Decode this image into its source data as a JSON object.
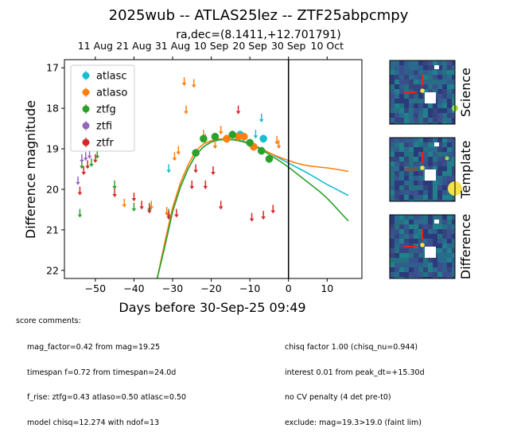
{
  "title": "2025wub -- ATLAS25lez -- ZTF25abpcmpy",
  "radec": "ra,dec=(8.1411,+12.701791)",
  "chart_data": {
    "type": "scatter",
    "xlabel": "Days before 30-Sep-25 09:49",
    "ylabel": "Difference magnitude",
    "xlim": [
      -58,
      19
    ],
    "ylim": [
      22.2,
      16.8
    ],
    "yticks": [
      17,
      18,
      19,
      20,
      21,
      22
    ],
    "xticks": [
      -50,
      -40,
      -30,
      -20,
      -10,
      0,
      10
    ],
    "top_axis_ticks": [
      {
        "label": "11 Aug",
        "x": -50
      },
      {
        "label": "21 Aug",
        "x": -40
      },
      {
        "label": "31 Aug",
        "x": -30
      },
      {
        "label": "10 Sep",
        "x": -20
      },
      {
        "label": "20 Sep",
        "x": -10
      },
      {
        "label": "30 Sep",
        "x": 0
      },
      {
        "label": "10 Oct",
        "x": 10
      }
    ],
    "vline_x": 0,
    "legend": [
      {
        "name": "atlasc",
        "color": "#17becf"
      },
      {
        "name": "atlaso",
        "color": "#ff7f0e"
      },
      {
        "name": "ztfg",
        "color": "#2ca02c"
      },
      {
        "name": "ztfi",
        "color": "#9467bd"
      },
      {
        "name": "ztfr",
        "color": "#d62728"
      }
    ],
    "detections": [
      {
        "series": "atlasc",
        "x": -12.5,
        "y": 18.65,
        "big": true
      },
      {
        "series": "atlasc",
        "x": -6.5,
        "y": 18.75,
        "big": true
      },
      {
        "series": "atlaso",
        "x": -16,
        "y": 18.75,
        "big": true
      },
      {
        "series": "atlaso",
        "x": -13,
        "y": 18.7,
        "big": true
      },
      {
        "series": "atlaso",
        "x": -11.5,
        "y": 18.7,
        "big": true
      },
      {
        "series": "atlaso",
        "x": -9,
        "y": 18.95,
        "big": true
      },
      {
        "series": "ztfg",
        "x": -24,
        "y": 19.1,
        "big": true
      },
      {
        "series": "ztfg",
        "x": -22,
        "y": 18.75,
        "big": true
      },
      {
        "series": "ztfg",
        "x": -19,
        "y": 18.7,
        "big": true
      },
      {
        "series": "ztfg",
        "x": -14.5,
        "y": 18.65,
        "big": true
      },
      {
        "series": "ztfg",
        "x": -10,
        "y": 18.85,
        "big": true
      },
      {
        "series": "ztfg",
        "x": -7,
        "y": 19.05,
        "big": true
      },
      {
        "series": "ztfg",
        "x": -5,
        "y": 19.25,
        "big": true
      }
    ],
    "upper_limits": [
      {
        "series": "atlasc",
        "x": -31,
        "y": 19.5
      },
      {
        "series": "atlasc",
        "x": -8.5,
        "y": 18.65
      },
      {
        "series": "atlasc",
        "x": -7,
        "y": 18.25
      },
      {
        "series": "atlaso",
        "x": -31.5,
        "y": 20.55
      },
      {
        "series": "atlaso",
        "x": -29.5,
        "y": 19.2
      },
      {
        "series": "atlaso",
        "x": -28.5,
        "y": 19.05
      },
      {
        "series": "atlaso",
        "x": -27,
        "y": 17.35
      },
      {
        "series": "atlaso",
        "x": -26.5,
        "y": 18.05
      },
      {
        "series": "atlaso",
        "x": -24.5,
        "y": 17.4
      },
      {
        "series": "atlaso",
        "x": -22,
        "y": 18.65
      },
      {
        "series": "atlaso",
        "x": -21.5,
        "y": 18.75
      },
      {
        "series": "atlaso",
        "x": -19,
        "y": 18.9
      },
      {
        "series": "atlaso",
        "x": -17.5,
        "y": 18.55
      },
      {
        "series": "atlaso",
        "x": -35.5,
        "y": 20.4
      },
      {
        "series": "atlaso",
        "x": -3,
        "y": 18.8
      },
      {
        "series": "atlaso",
        "x": -2.5,
        "y": 18.9
      },
      {
        "series": "atlaso",
        "x": -42.5,
        "y": 20.35
      },
      {
        "series": "ztfg",
        "x": -54,
        "y": 20.6
      },
      {
        "series": "ztfg",
        "x": -53.5,
        "y": 19.4
      },
      {
        "series": "ztfg",
        "x": -49.5,
        "y": 19.15
      },
      {
        "series": "ztfg",
        "x": -51,
        "y": 19.35
      },
      {
        "series": "ztfg",
        "x": -45,
        "y": 19.9
      },
      {
        "series": "ztfg",
        "x": -40,
        "y": 20.45
      },
      {
        "series": "ztfg",
        "x": -36,
        "y": 20.45
      },
      {
        "series": "ztfg",
        "x": -31,
        "y": 20.6
      },
      {
        "series": "ztfi",
        "x": -54.5,
        "y": 19.8
      },
      {
        "series": "ztfi",
        "x": -53.5,
        "y": 19.25
      },
      {
        "series": "ztfi",
        "x": -52.5,
        "y": 19.2
      },
      {
        "series": "ztfi",
        "x": -51.5,
        "y": 19.15
      },
      {
        "series": "ztfr",
        "x": -54,
        "y": 20.05
      },
      {
        "series": "ztfr",
        "x": -53,
        "y": 19.55
      },
      {
        "series": "ztfr",
        "x": -52,
        "y": 19.4
      },
      {
        "series": "ztfr",
        "x": -50,
        "y": 19.25
      },
      {
        "series": "ztfr",
        "x": -45,
        "y": 20.1
      },
      {
        "series": "ztfr",
        "x": -40,
        "y": 20.2
      },
      {
        "series": "ztfr",
        "x": -38,
        "y": 20.4
      },
      {
        "series": "ztfr",
        "x": -36,
        "y": 20.5
      },
      {
        "series": "ztfr",
        "x": -31,
        "y": 20.65
      },
      {
        "series": "ztfr",
        "x": -29,
        "y": 20.6
      },
      {
        "series": "ztfr",
        "x": -25,
        "y": 19.9
      },
      {
        "series": "ztfr",
        "x": -24,
        "y": 19.5
      },
      {
        "series": "ztfr",
        "x": -21.5,
        "y": 19.9
      },
      {
        "series": "ztfr",
        "x": -19.5,
        "y": 19.55
      },
      {
        "series": "ztfr",
        "x": -17.5,
        "y": 20.4
      },
      {
        "series": "ztfr",
        "x": -13,
        "y": 18.05
      },
      {
        "series": "ztfr",
        "x": -9.5,
        "y": 20.7
      },
      {
        "series": "ztfr",
        "x": -6.5,
        "y": 20.65
      },
      {
        "series": "ztfr",
        "x": -4,
        "y": 20.5
      }
    ],
    "model_curves": [
      {
        "series": "atlasc",
        "points": [
          [
            -34,
            22.2
          ],
          [
            -32,
            21.4
          ],
          [
            -30,
            20.55
          ],
          [
            -28,
            19.95
          ],
          [
            -26,
            19.5
          ],
          [
            -24,
            19.15
          ],
          [
            -22,
            18.95
          ],
          [
            -20,
            18.83
          ],
          [
            -18,
            18.78
          ],
          [
            -16,
            18.76
          ],
          [
            -14,
            18.77
          ],
          [
            -12,
            18.8
          ],
          [
            -10,
            18.87
          ],
          [
            -8,
            18.95
          ],
          [
            -6,
            19.05
          ],
          [
            -4,
            19.15
          ],
          [
            -2,
            19.25
          ],
          [
            0,
            19.35
          ],
          [
            2,
            19.45
          ],
          [
            4,
            19.55
          ],
          [
            6,
            19.66
          ],
          [
            8,
            19.77
          ],
          [
            10,
            19.88
          ],
          [
            12,
            19.98
          ],
          [
            14,
            20.08
          ],
          [
            15.5,
            20.15
          ]
        ]
      },
      {
        "series": "atlaso",
        "points": [
          [
            -34,
            22.2
          ],
          [
            -32,
            21.3
          ],
          [
            -30,
            20.45
          ],
          [
            -28,
            19.85
          ],
          [
            -26,
            19.4
          ],
          [
            -24,
            19.05
          ],
          [
            -22,
            18.88
          ],
          [
            -20,
            18.8
          ],
          [
            -18,
            18.76
          ],
          [
            -16,
            18.76
          ],
          [
            -14,
            18.78
          ],
          [
            -12,
            18.82
          ],
          [
            -10,
            18.88
          ],
          [
            -8,
            18.96
          ],
          [
            -6,
            19.05
          ],
          [
            -4,
            19.14
          ],
          [
            -2,
            19.22
          ],
          [
            0,
            19.29
          ],
          [
            2,
            19.35
          ],
          [
            4,
            19.4
          ],
          [
            6,
            19.43
          ],
          [
            8,
            19.45
          ],
          [
            10,
            19.47
          ],
          [
            12,
            19.5
          ],
          [
            14,
            19.53
          ],
          [
            15.5,
            19.56
          ]
        ]
      },
      {
        "series": "ztfg",
        "points": [
          [
            -34,
            22.2
          ],
          [
            -32,
            21.4
          ],
          [
            -30,
            20.55
          ],
          [
            -28,
            19.95
          ],
          [
            -26,
            19.5
          ],
          [
            -24,
            19.15
          ],
          [
            -22,
            18.95
          ],
          [
            -20,
            18.83
          ],
          [
            -18,
            18.78
          ],
          [
            -16,
            18.77
          ],
          [
            -14,
            18.78
          ],
          [
            -12,
            18.82
          ],
          [
            -10,
            18.88
          ],
          [
            -8,
            18.97
          ],
          [
            -6,
            19.08
          ],
          [
            -4,
            19.2
          ],
          [
            -2,
            19.32
          ],
          [
            0,
            19.45
          ],
          [
            2,
            19.6
          ],
          [
            4,
            19.75
          ],
          [
            6,
            19.9
          ],
          [
            8,
            20.05
          ],
          [
            10,
            20.22
          ],
          [
            12,
            20.42
          ],
          [
            14,
            20.63
          ],
          [
            15.5,
            20.78
          ]
        ]
      }
    ]
  },
  "thumbnails": {
    "labels": [
      "Science",
      "Template",
      "Difference"
    ]
  },
  "comments": {
    "heading": "score comments:",
    "left": [
      "mag_factor=0.42 from mag=19.25",
      "timespan f=0.72 from timespan=24.0d",
      "f_rise: ztfg=0.43 atlaso=0.50 atlasc=0.50",
      "model chisq=12.274 with ndof=13"
    ],
    "right": [
      "chisq factor 1.00 (chisq_nu=0.944)",
      "interest 0.01 from peak_dt=+15.30d",
      "no CV penalty (4 det pre-t0)",
      "exclude: mag=19.3>19.0 (faint lim)"
    ]
  }
}
